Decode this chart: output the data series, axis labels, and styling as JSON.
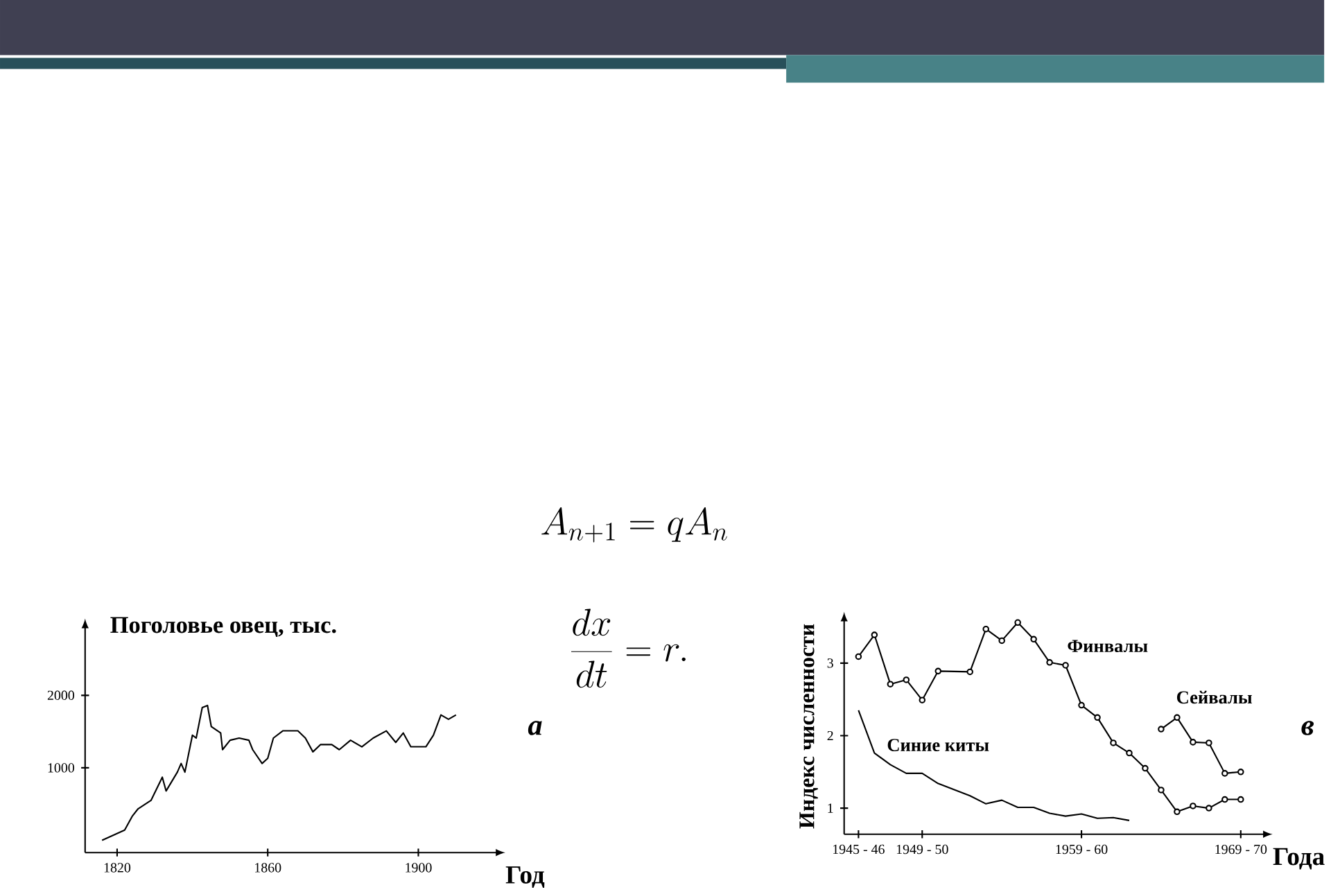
{
  "chart_data": [
    {
      "type": "line",
      "ylabel": "Поголовье овец, тыс.",
      "xlabel": "Год",
      "xlim": [
        1811.5,
        1921.4
      ],
      "ylim": [
        -170,
        2970
      ],
      "xticks": [
        1820,
        1860,
        1900
      ],
      "yticks": [
        1000,
        2000
      ],
      "legend": false,
      "grid": false,
      "series": [
        {
          "color": "#000000",
          "marker": "none",
          "x": [
            1816,
            1822,
            1824,
            1825.5,
            1829,
            1832,
            1833,
            1836,
            1837,
            1838,
            1840,
            1841,
            1842.6,
            1844,
            1845,
            1847.5,
            1848,
            1850,
            1852.4,
            1855,
            1856,
            1858.5,
            1860,
            1861.5,
            1864,
            1868,
            1870,
            1872,
            1874,
            1877,
            1879,
            1882,
            1885,
            1888,
            1891.5,
            1894,
            1896,
            1898,
            1902,
            1904,
            1906,
            1908,
            1910
          ],
          "values": [
            0,
            140,
            330,
            430,
            550,
            870,
            680,
            940,
            1060,
            940,
            1450,
            1410,
            1830,
            1860,
            1570,
            1480,
            1250,
            1380,
            1410,
            1380,
            1250,
            1060,
            1130,
            1410,
            1510,
            1510,
            1410,
            1220,
            1320,
            1320,
            1250,
            1380,
            1290,
            1410,
            1510,
            1350,
            1480,
            1290,
            1290,
            1450,
            1730,
            1670,
            1730
          ]
        }
      ],
      "annotations": [
        "а",
        "A_{n+1} = qA_n",
        "\\frac{dx}{dt} = r."
      ]
    },
    {
      "type": "line",
      "ylabel": "Индекс численности",
      "xlabel": "Года",
      "categories": [
        "1945 - 46",
        null,
        null,
        null,
        "1949 - 50",
        null,
        null,
        null,
        null,
        null,
        null,
        null,
        null,
        null,
        "1959 - 60",
        null,
        null,
        null,
        null,
        null,
        null,
        null,
        null,
        null,
        "1969 - 70"
      ],
      "ylim": [
        0.64,
        3.62
      ],
      "yticks": [
        1,
        2,
        3
      ],
      "legend": false,
      "grid": false,
      "series": [
        {
          "name": "Финвалы",
          "color": "#000000",
          "marker": "circle",
          "values": [
            3.09,
            3.39,
            2.71,
            2.77,
            2.49,
            2.89,
            null,
            2.88,
            3.47,
            3.31,
            3.56,
            3.33,
            3.01,
            2.97,
            2.42,
            2.25,
            1.9,
            1.76,
            1.55,
            1.25,
            0.95,
            1.03,
            1.0,
            1.12,
            1.12
          ]
        },
        {
          "name": "Сейвалы",
          "color": "#000000",
          "marker": "circle",
          "values": [
            null,
            null,
            null,
            null,
            null,
            null,
            null,
            null,
            null,
            null,
            null,
            null,
            null,
            null,
            null,
            null,
            null,
            null,
            null,
            2.09,
            2.25,
            1.91,
            1.9,
            1.48,
            1.5
          ]
        },
        {
          "name": "Синие киты",
          "color": "#000000",
          "marker": "none",
          "values": [
            2.35,
            1.76,
            1.6,
            1.48,
            1.48,
            1.34,
            null,
            1.17,
            1.06,
            1.11,
            1.01,
            1.01,
            0.93,
            0.89,
            0.92,
            0.86,
            0.87,
            0.83,
            null,
            null,
            null,
            null,
            null,
            null,
            null
          ]
        }
      ],
      "annotations": [
        "в"
      ]
    }
  ]
}
